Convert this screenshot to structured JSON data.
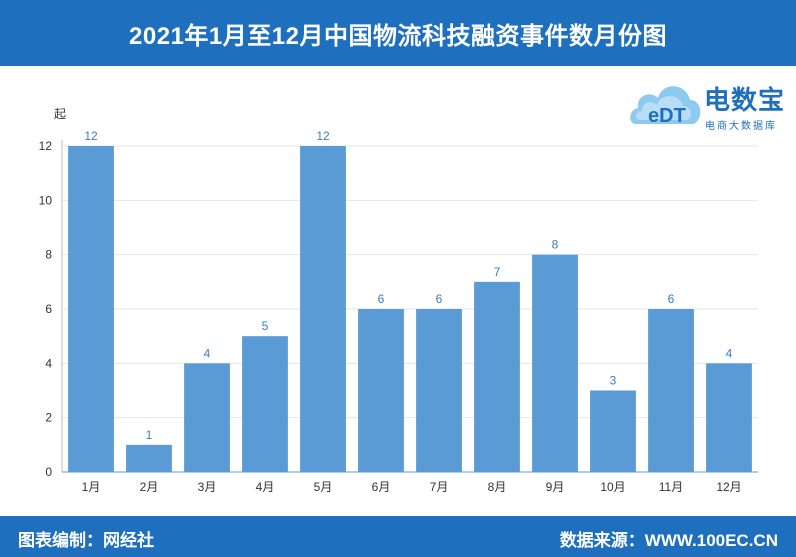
{
  "header": {
    "title": "2021年1月至12月中国物流科技融资事件数月份图"
  },
  "footer": {
    "left": "图表编制：网经社",
    "right": "数据来源：WWW.100EC.CN"
  },
  "logo": {
    "name": "电数宝",
    "sub": "电商大数据库",
    "badge": "eDT",
    "icon": "cloud-logo-icon"
  },
  "colors": {
    "header": "#1f6fbf",
    "bar": "#5b9bd5",
    "label": "#3a7bc8"
  },
  "chart_data": {
    "type": "bar",
    "title": "2021年1月至12月中国物流科技融资事件数月份图",
    "ylabel": "起",
    "categories": [
      "1月",
      "2月",
      "3月",
      "4月",
      "5月",
      "6月",
      "7月",
      "8月",
      "9月",
      "10月",
      "11月",
      "12月"
    ],
    "values": [
      12,
      1,
      4,
      5,
      12,
      6,
      6,
      7,
      8,
      3,
      6,
      4
    ],
    "ylim": [
      0,
      12
    ],
    "yticks": [
      0,
      2,
      4,
      6,
      8,
      10,
      12
    ],
    "grid": true,
    "data_labels": true
  }
}
